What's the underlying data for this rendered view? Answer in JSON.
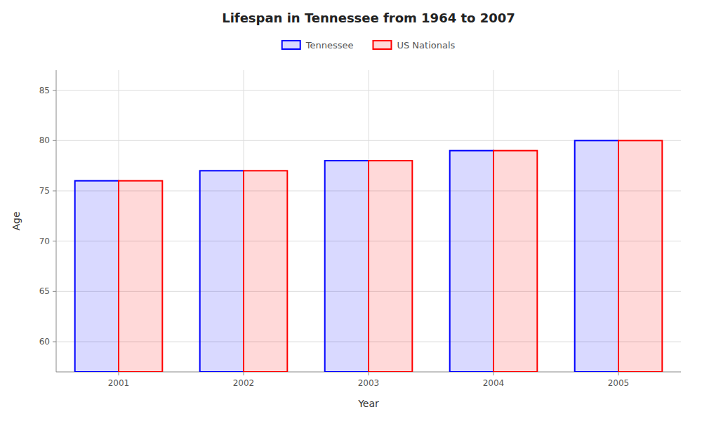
{
  "chart_data": {
    "type": "bar",
    "title": "Lifespan in Tennessee from 1964 to 2007",
    "xlabel": "Year",
    "ylabel": "Age",
    "categories": [
      "2001",
      "2002",
      "2003",
      "2004",
      "2005"
    ],
    "series": [
      {
        "name": "Tennessee",
        "color": "#0000ff",
        "values": [
          76,
          77,
          78,
          79,
          80
        ]
      },
      {
        "name": "US Nationals",
        "color": "#ff0000",
        "values": [
          76,
          77,
          78,
          79,
          80
        ]
      }
    ],
    "ylim": [
      57,
      87
    ],
    "yticks": [
      60,
      65,
      70,
      75,
      80,
      85
    ],
    "grid": true,
    "legend": "top"
  }
}
